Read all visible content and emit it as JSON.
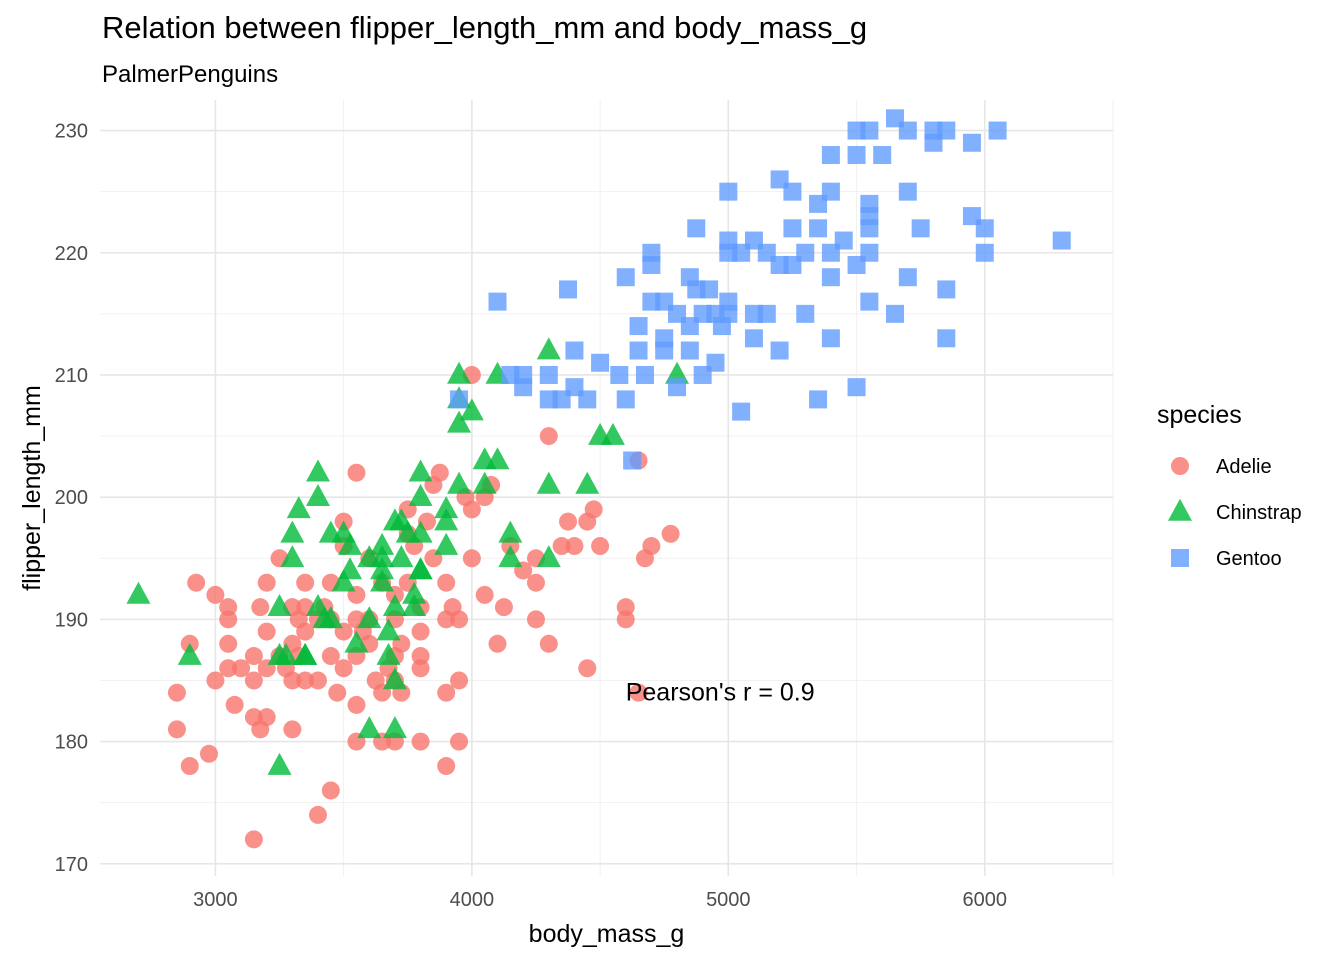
{
  "chart_data": {
    "type": "scatter",
    "title": "Relation between flipper_length_mm and body_mass_g",
    "subtitle": "PalmerPenguins",
    "xlabel": "body_mass_g",
    "ylabel": "flipper_length_mm",
    "xlim": [
      2550,
      6500
    ],
    "ylim": [
      169,
      232.5
    ],
    "xticks": [
      3000,
      4000,
      5000,
      6000
    ],
    "yticks": [
      170,
      180,
      190,
      200,
      210,
      220,
      230
    ],
    "grid": true,
    "legend": {
      "title": "species",
      "position": "right"
    },
    "annotation": {
      "text": "Pearson's r = 0.9",
      "x": 4600,
      "y": 184
    },
    "series": [
      {
        "name": "Adelie",
        "color": "#F8766D",
        "shape": "circle",
        "points": [
          [
            2850,
            184
          ],
          [
            2850,
            181
          ],
          [
            2900,
            188
          ],
          [
            2900,
            178
          ],
          [
            2925,
            193
          ],
          [
            2975,
            179
          ],
          [
            3000,
            192
          ],
          [
            3000,
            185
          ],
          [
            3050,
            191
          ],
          [
            3050,
            190
          ],
          [
            3050,
            188
          ],
          [
            3050,
            186
          ],
          [
            3075,
            183
          ],
          [
            3100,
            186
          ],
          [
            3150,
            185
          ],
          [
            3150,
            187
          ],
          [
            3150,
            182
          ],
          [
            3150,
            172
          ],
          [
            3175,
            191
          ],
          [
            3175,
            181
          ],
          [
            3200,
            186
          ],
          [
            3200,
            193
          ],
          [
            3200,
            189
          ],
          [
            3200,
            182
          ],
          [
            3250,
            195
          ],
          [
            3250,
            187
          ],
          [
            3275,
            186
          ],
          [
            3300,
            191
          ],
          [
            3300,
            188
          ],
          [
            3300,
            185
          ],
          [
            3300,
            181
          ],
          [
            3325,
            190
          ],
          [
            3325,
            187
          ],
          [
            3350,
            193
          ],
          [
            3350,
            191
          ],
          [
            3350,
            185
          ],
          [
            3350,
            189
          ],
          [
            3400,
            190
          ],
          [
            3400,
            185
          ],
          [
            3400,
            174
          ],
          [
            3425,
            191
          ],
          [
            3450,
            193
          ],
          [
            3450,
            190
          ],
          [
            3450,
            187
          ],
          [
            3450,
            176
          ],
          [
            3475,
            184
          ],
          [
            3500,
            198
          ],
          [
            3500,
            196
          ],
          [
            3500,
            189
          ],
          [
            3500,
            186
          ],
          [
            3550,
            202
          ],
          [
            3550,
            192
          ],
          [
            3550,
            190
          ],
          [
            3550,
            187
          ],
          [
            3550,
            183
          ],
          [
            3550,
            180
          ],
          [
            3575,
            189
          ],
          [
            3600,
            195
          ],
          [
            3600,
            190
          ],
          [
            3600,
            188
          ],
          [
            3625,
            185
          ],
          [
            3650,
            184
          ],
          [
            3650,
            193
          ],
          [
            3650,
            180
          ],
          [
            3675,
            186
          ],
          [
            3700,
            192
          ],
          [
            3700,
            190
          ],
          [
            3700,
            187
          ],
          [
            3700,
            180
          ],
          [
            3700,
            185
          ],
          [
            3725,
            188
          ],
          [
            3725,
            184
          ],
          [
            3750,
            199
          ],
          [
            3750,
            197
          ],
          [
            3750,
            193
          ],
          [
            3775,
            196
          ],
          [
            3800,
            191
          ],
          [
            3800,
            189
          ],
          [
            3800,
            187
          ],
          [
            3800,
            186
          ],
          [
            3800,
            180
          ],
          [
            3825,
            198
          ],
          [
            3850,
            201
          ],
          [
            3850,
            195
          ],
          [
            3875,
            202
          ],
          [
            3900,
            193
          ],
          [
            3900,
            190
          ],
          [
            3900,
            184
          ],
          [
            3900,
            178
          ],
          [
            3925,
            191
          ],
          [
            3950,
            190
          ],
          [
            3950,
            185
          ],
          [
            3950,
            180
          ],
          [
            3975,
            200
          ],
          [
            4000,
            210
          ],
          [
            4000,
            195
          ],
          [
            4000,
            199
          ],
          [
            4050,
            200
          ],
          [
            4050,
            192
          ],
          [
            4075,
            201
          ],
          [
            4100,
            188
          ],
          [
            4125,
            191
          ],
          [
            4150,
            196
          ],
          [
            4200,
            194
          ],
          [
            4250,
            195
          ],
          [
            4250,
            190
          ],
          [
            4250,
            193
          ],
          [
            4300,
            205
          ],
          [
            4300,
            188
          ],
          [
            4350,
            196
          ],
          [
            4375,
            198
          ],
          [
            4400,
            196
          ],
          [
            4450,
            198
          ],
          [
            4450,
            186
          ],
          [
            4475,
            199
          ],
          [
            4500,
            196
          ],
          [
            4600,
            191
          ],
          [
            4600,
            190
          ],
          [
            4650,
            203
          ],
          [
            4650,
            184
          ],
          [
            4675,
            195
          ],
          [
            4700,
            196
          ],
          [
            4775,
            197
          ]
        ]
      },
      {
        "name": "Chinstrap",
        "color": "#00BA38",
        "shape": "triangle",
        "points": [
          [
            2700,
            192
          ],
          [
            2900,
            187
          ],
          [
            3250,
            187
          ],
          [
            3250,
            191
          ],
          [
            3250,
            178
          ],
          [
            3275,
            187
          ],
          [
            3300,
            195
          ],
          [
            3300,
            197
          ],
          [
            3325,
            199
          ],
          [
            3350,
            187
          ],
          [
            3350,
            187
          ],
          [
            3400,
            191
          ],
          [
            3400,
            200
          ],
          [
            3400,
            202
          ],
          [
            3425,
            190
          ],
          [
            3450,
            197
          ],
          [
            3450,
            190
          ],
          [
            3500,
            197
          ],
          [
            3500,
            193
          ],
          [
            3525,
            196
          ],
          [
            3525,
            194
          ],
          [
            3550,
            188
          ],
          [
            3600,
            195
          ],
          [
            3600,
            190
          ],
          [
            3600,
            181
          ],
          [
            3650,
            193
          ],
          [
            3650,
            194
          ],
          [
            3650,
            196
          ],
          [
            3650,
            195
          ],
          [
            3675,
            189
          ],
          [
            3675,
            187
          ],
          [
            3700,
            198
          ],
          [
            3700,
            191
          ],
          [
            3700,
            185
          ],
          [
            3700,
            181
          ],
          [
            3725,
            198
          ],
          [
            3725,
            195
          ],
          [
            3750,
            197
          ],
          [
            3775,
            192
          ],
          [
            3775,
            191
          ],
          [
            3800,
            194
          ],
          [
            3800,
            197
          ],
          [
            3800,
            202
          ],
          [
            3800,
            194
          ],
          [
            3800,
            200
          ],
          [
            3900,
            199
          ],
          [
            3900,
            196
          ],
          [
            3900,
            198
          ],
          [
            3950,
            210
          ],
          [
            3950,
            206
          ],
          [
            3950,
            201
          ],
          [
            3950,
            208
          ],
          [
            4000,
            207
          ],
          [
            4050,
            203
          ],
          [
            4050,
            201
          ],
          [
            4100,
            210
          ],
          [
            4100,
            203
          ],
          [
            4150,
            197
          ],
          [
            4150,
            195
          ],
          [
            4300,
            212
          ],
          [
            4300,
            201
          ],
          [
            4300,
            195
          ],
          [
            4450,
            201
          ],
          [
            4500,
            205
          ],
          [
            4550,
            205
          ],
          [
            4800,
            210
          ]
        ]
      },
      {
        "name": "Gentoo",
        "color": "#619CFF",
        "shape": "square",
        "points": [
          [
            3950,
            208
          ],
          [
            4100,
            216
          ],
          [
            4150,
            210
          ],
          [
            4200,
            210
          ],
          [
            4200,
            209
          ],
          [
            4300,
            210
          ],
          [
            4300,
            208
          ],
          [
            4350,
            208
          ],
          [
            4375,
            217
          ],
          [
            4400,
            212
          ],
          [
            4400,
            209
          ],
          [
            4450,
            208
          ],
          [
            4500,
            211
          ],
          [
            4575,
            210
          ],
          [
            4600,
            208
          ],
          [
            4600,
            218
          ],
          [
            4625,
            203
          ],
          [
            4650,
            212
          ],
          [
            4650,
            214
          ],
          [
            4675,
            210
          ],
          [
            4700,
            216
          ],
          [
            4700,
            220
          ],
          [
            4700,
            219
          ],
          [
            4750,
            216
          ],
          [
            4750,
            212
          ],
          [
            4750,
            213
          ],
          [
            4800,
            209
          ],
          [
            4800,
            215
          ],
          [
            4850,
            218
          ],
          [
            4850,
            212
          ],
          [
            4850,
            214
          ],
          [
            4875,
            222
          ],
          [
            4875,
            217
          ],
          [
            4900,
            210
          ],
          [
            4900,
            215
          ],
          [
            4925,
            217
          ],
          [
            4950,
            211
          ],
          [
            4950,
            215
          ],
          [
            4975,
            214
          ],
          [
            5000,
            225
          ],
          [
            5000,
            220
          ],
          [
            5000,
            221
          ],
          [
            5000,
            216
          ],
          [
            5000,
            215
          ],
          [
            5050,
            207
          ],
          [
            5050,
            220
          ],
          [
            5100,
            221
          ],
          [
            5100,
            215
          ],
          [
            5100,
            213
          ],
          [
            5150,
            215
          ],
          [
            5150,
            220
          ],
          [
            5200,
            226
          ],
          [
            5200,
            219
          ],
          [
            5200,
            212
          ],
          [
            5250,
            225
          ],
          [
            5250,
            219
          ],
          [
            5250,
            222
          ],
          [
            5300,
            220
          ],
          [
            5300,
            215
          ],
          [
            5350,
            208
          ],
          [
            5350,
            222
          ],
          [
            5350,
            224
          ],
          [
            5400,
            220
          ],
          [
            5400,
            213
          ],
          [
            5400,
            218
          ],
          [
            5400,
            228
          ],
          [
            5400,
            225
          ],
          [
            5450,
            221
          ],
          [
            5500,
            219
          ],
          [
            5500,
            209
          ],
          [
            5500,
            230
          ],
          [
            5500,
            228
          ],
          [
            5550,
            230
          ],
          [
            5550,
            222
          ],
          [
            5550,
            223
          ],
          [
            5550,
            224
          ],
          [
            5550,
            216
          ],
          [
            5550,
            220
          ],
          [
            5600,
            228
          ],
          [
            5650,
            231
          ],
          [
            5650,
            215
          ],
          [
            5700,
            230
          ],
          [
            5700,
            225
          ],
          [
            5700,
            218
          ],
          [
            5750,
            222
          ],
          [
            5800,
            230
          ],
          [
            5800,
            229
          ],
          [
            5850,
            217
          ],
          [
            5850,
            230
          ],
          [
            5850,
            213
          ],
          [
            5950,
            229
          ],
          [
            5950,
            223
          ],
          [
            6000,
            222
          ],
          [
            6000,
            220
          ],
          [
            6050,
            230
          ],
          [
            6300,
            221
          ]
        ]
      }
    ]
  }
}
